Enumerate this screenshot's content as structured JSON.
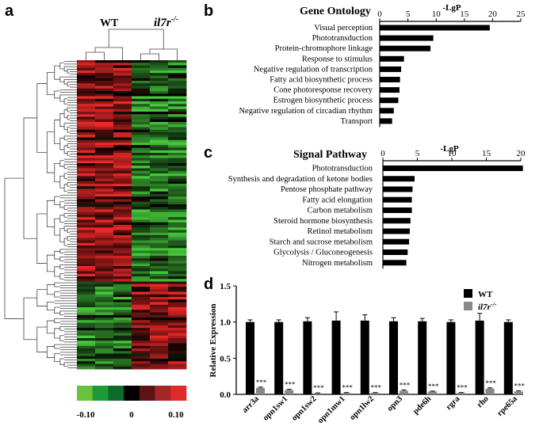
{
  "panel_labels": {
    "a": "a",
    "b": "b",
    "c": "c",
    "d": "d"
  },
  "heatmap": {
    "groups": [
      "WT",
      "il7r",
      "-/-"
    ],
    "scale": {
      "labels": [
        "-0.10",
        "0",
        "0.10"
      ],
      "colors": [
        "#66c33a",
        "#1e9a36",
        "#0e6b2c",
        "#000000",
        "#5c1414",
        "#a52626",
        "#e02a2a"
      ]
    }
  },
  "chart_data": [
    {
      "panel": "b",
      "type": "bar",
      "orientation": "horizontal",
      "title": "Gene Ontology",
      "xlabel": "-LgP",
      "xlim": [
        0,
        25
      ],
      "xticks": [
        0,
        5,
        10,
        15,
        20,
        25
      ],
      "categories": [
        "Visual perception",
        "Phototransduction",
        "Protein-chromophore linkage",
        "Response to stimulus",
        "Negative regulation of transcription",
        "Fatty acid biosynthetic process",
        "Cone photoresponse recovery",
        "Estrogen biosynthetic process",
        "Negative regulation of circadian rhythm",
        "Transport"
      ],
      "values": [
        19.5,
        9.5,
        9.0,
        4.3,
        3.8,
        3.6,
        3.5,
        3.3,
        2.5,
        2.2
      ],
      "bar_color": "#000000"
    },
    {
      "panel": "c",
      "type": "bar",
      "orientation": "horizontal",
      "title": "Signal Pathway",
      "xlabel": "-LgP",
      "xlim": [
        0,
        20
      ],
      "xticks": [
        0,
        5,
        10,
        15,
        20
      ],
      "categories": [
        "Phototransduction",
        "Synthesis and degradation of ketone bodies",
        "Pentose phosphate pathway",
        "Fatty acid elongation",
        "Carbon metabolism",
        "Steroid hormone biosynthesis",
        "Retinol metabolism",
        "Starch and sucrose metabolism",
        "Glycolysis / Gluconeogenesis",
        "Nitrogen metabolism"
      ],
      "values": [
        20.3,
        4.6,
        4.3,
        4.2,
        4.2,
        4.0,
        3.9,
        3.8,
        3.6,
        3.4
      ],
      "bar_color": "#000000"
    },
    {
      "panel": "d",
      "type": "bar",
      "ylabel": "Relative Expression",
      "ylim": [
        0,
        1.5
      ],
      "yticks": [
        "0.0",
        "0.5",
        "1.0",
        "1.5"
      ],
      "categories": [
        "arr3a",
        "opn1sw1",
        "opn1sw2",
        "opn1mw1",
        "opn1lw2",
        "opn3",
        "pde6h",
        "rgra",
        "rho",
        "rpe65a"
      ],
      "series": [
        {
          "name": "WT",
          "color": "#000000",
          "values": [
            1.0,
            1.0,
            1.01,
            1.02,
            1.02,
            1.01,
            1.01,
            1.0,
            1.02,
            1.0
          ],
          "errors": [
            0.03,
            0.03,
            0.05,
            0.12,
            0.08,
            0.05,
            0.04,
            0.03,
            0.1,
            0.03
          ]
        },
        {
          "name": "il7r-/-",
          "color": "#888888",
          "values": [
            0.09,
            0.06,
            0.015,
            0.02,
            0.02,
            0.05,
            0.04,
            0.02,
            0.08,
            0.04
          ],
          "errors": [
            0.01,
            0.01,
            0.005,
            0.005,
            0.005,
            0.01,
            0.005,
            0.005,
            0.01,
            0.01
          ]
        }
      ],
      "legend": {
        "position": "top-right",
        "wt_label": "WT",
        "ko_label": "il7r",
        "ko_sup": "-/-"
      },
      "annotation": "***"
    }
  ]
}
